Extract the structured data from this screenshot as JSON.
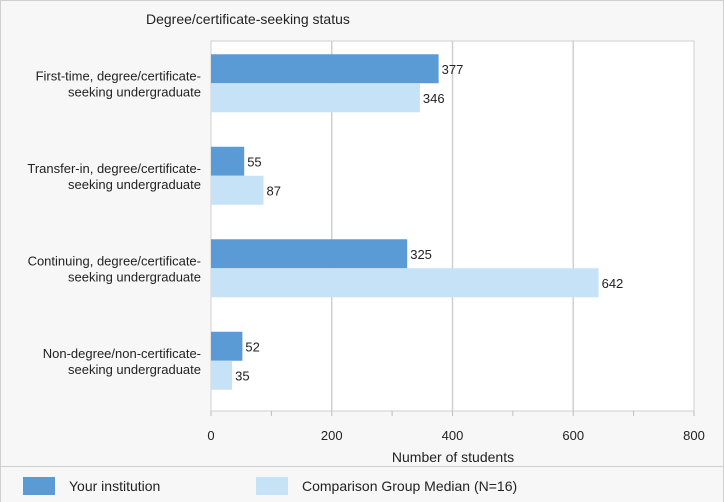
{
  "chart_data": {
    "type": "bar",
    "orientation": "horizontal",
    "title": "Degree/certificate-seeking status",
    "xlabel": "Number of students",
    "xlim": [
      0,
      800
    ],
    "xticks": [
      0,
      200,
      400,
      600,
      800
    ],
    "grid": true,
    "legend_position": "bottom",
    "categories": [
      [
        "First-time, degree/certificate-",
        "seeking undergraduate"
      ],
      [
        "Transfer-in, degree/certificate-",
        "seeking undergraduate"
      ],
      [
        "Continuing, degree/certificate-",
        "seeking undergraduate"
      ],
      [
        "Non-degree/non-certificate-",
        "seeking undergraduate"
      ]
    ],
    "series": [
      {
        "name": "Your institution",
        "color": "#5b9bd5",
        "values": [
          377,
          55,
          325,
          52
        ]
      },
      {
        "name": "Comparison Group Median (N=16)",
        "color": "#c6e2f7",
        "values": [
          346,
          87,
          642,
          35
        ]
      }
    ]
  }
}
